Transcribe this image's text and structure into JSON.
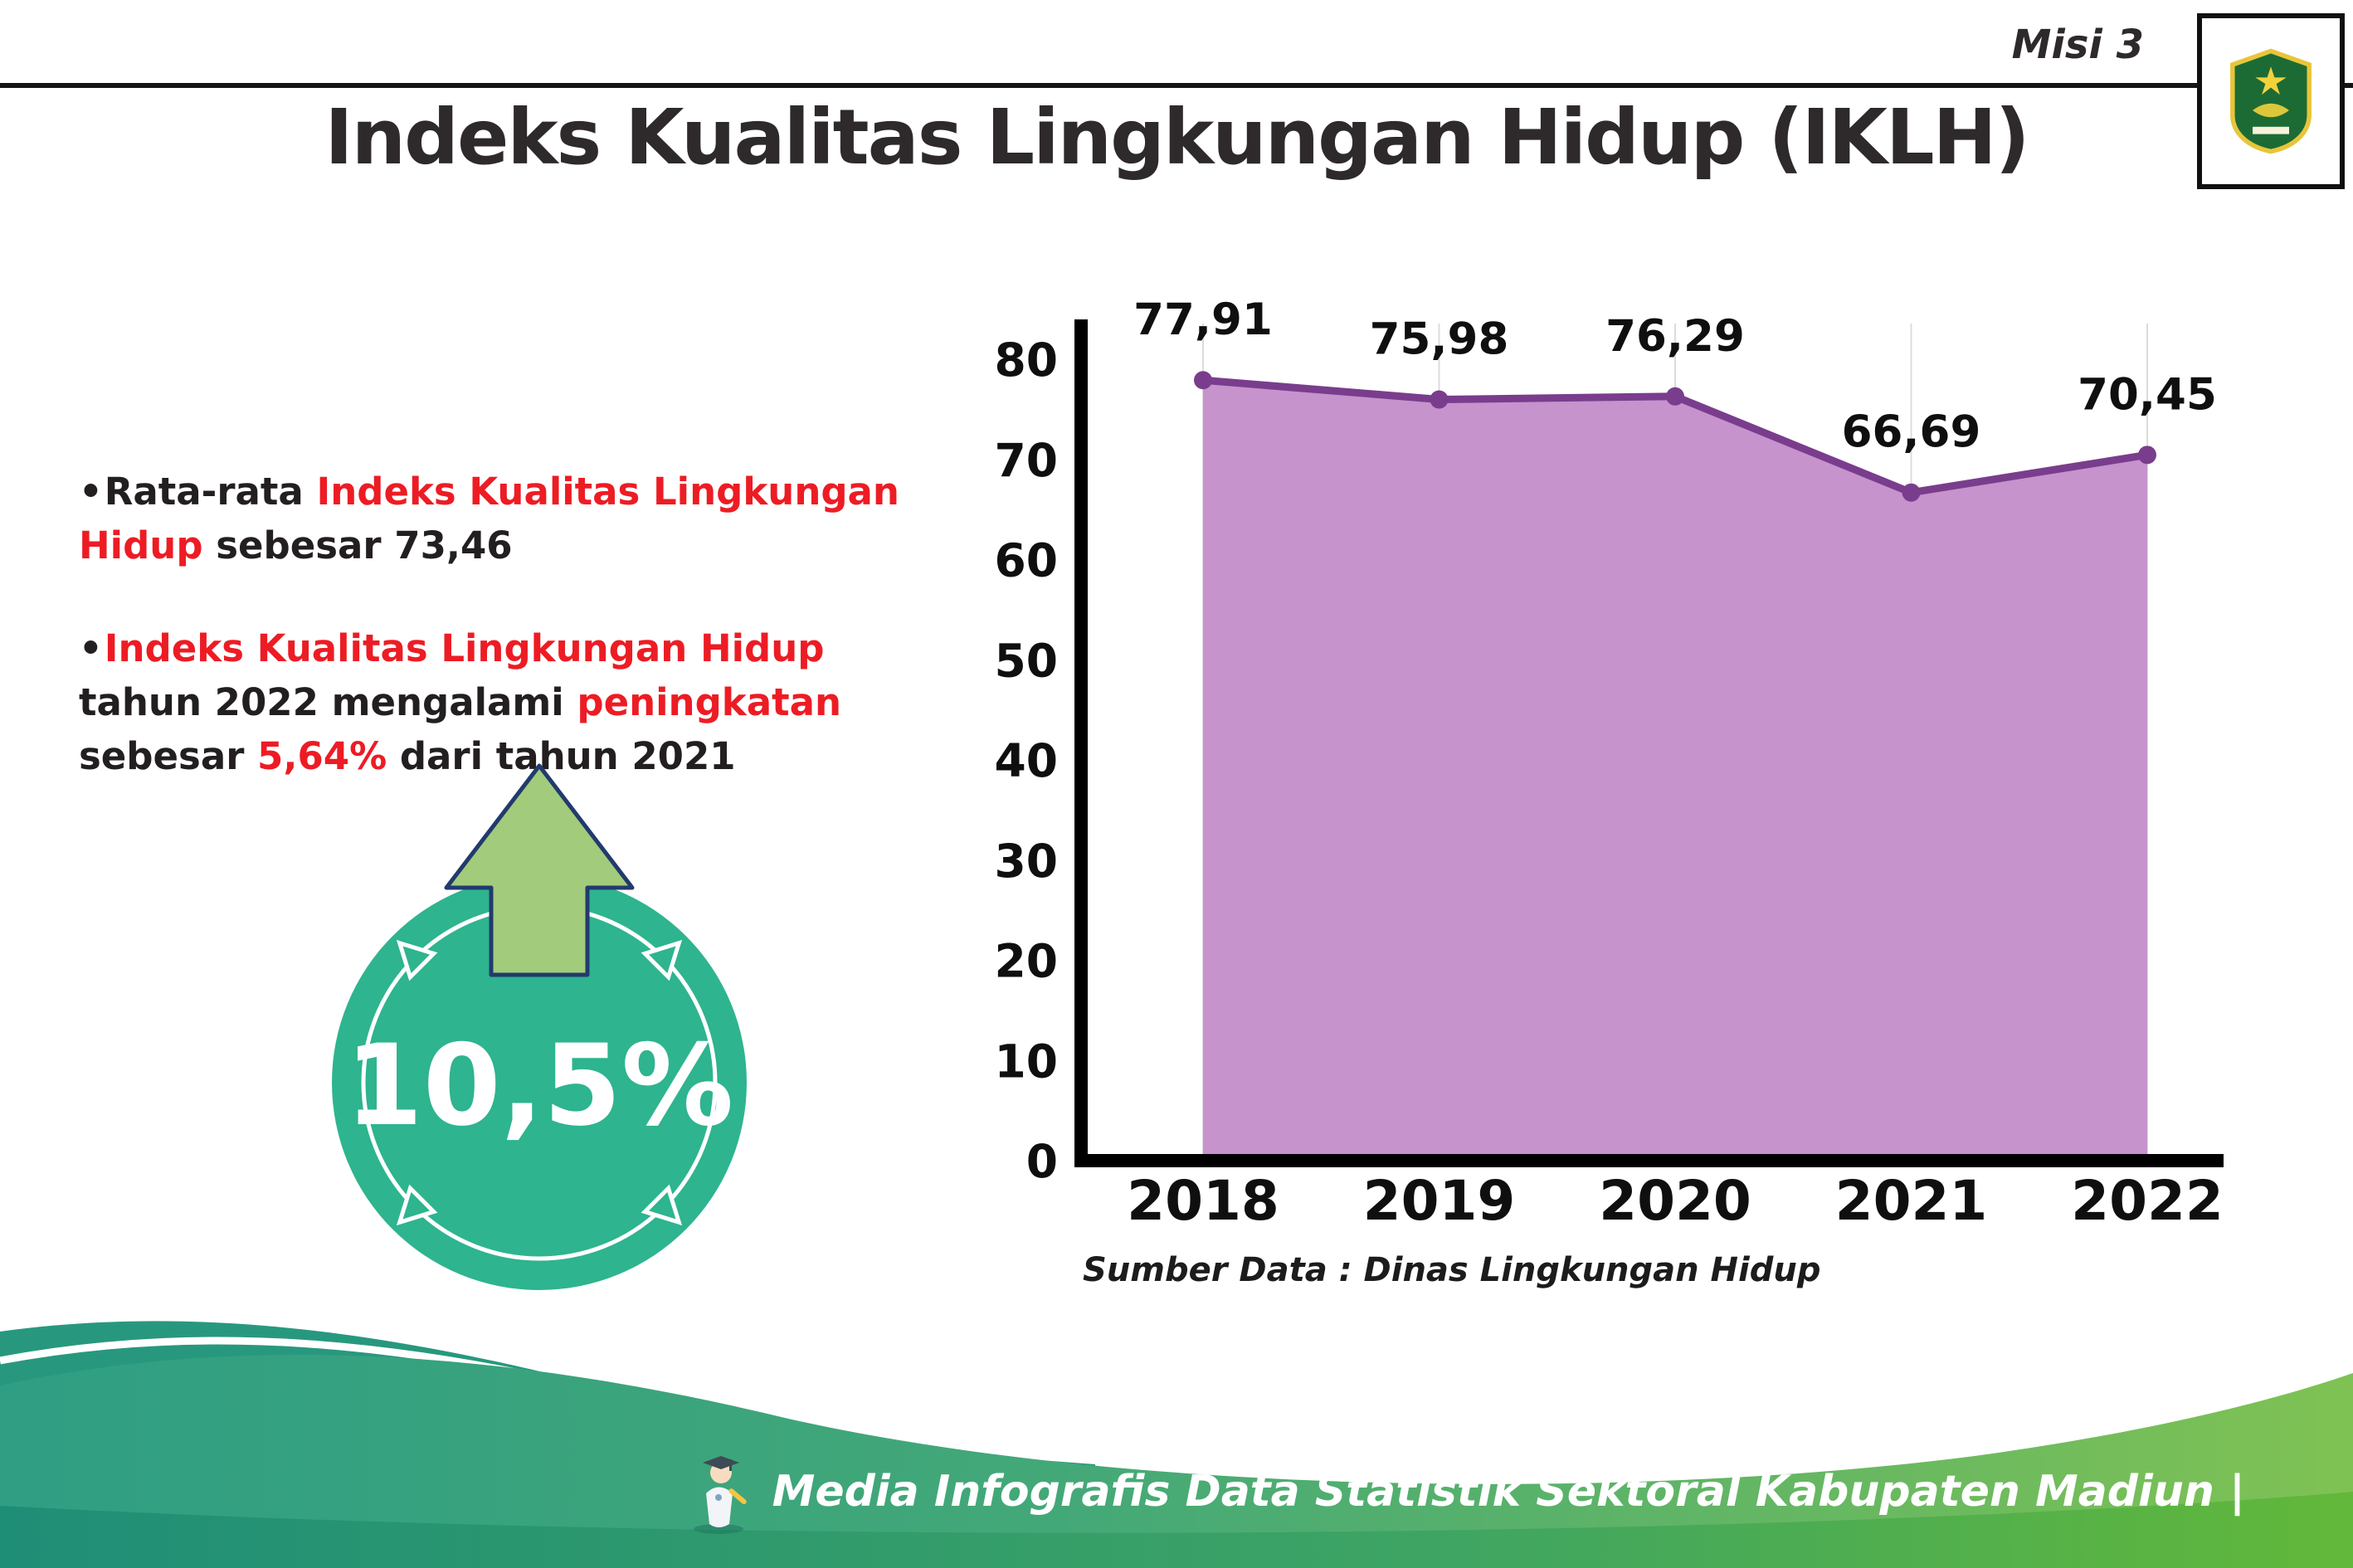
{
  "header": {
    "misi_label": "Misi 3",
    "logo_name": "Lambang Kabupaten Madiun",
    "title": "Indeks Kualitas Lingkungan Hidup (IKLH)"
  },
  "bullets": {
    "marker": "•",
    "b1": [
      {
        "text": "Rata-rata ",
        "color": "dark"
      },
      {
        "text": "Indeks Kualitas Lingkungan Hidup",
        "color": "red"
      },
      {
        "text": " sebesar 73,46",
        "color": "dark"
      }
    ],
    "b2": [
      {
        "text": "Indeks Kualitas Lingkungan Hidup",
        "color": "red"
      },
      {
        "text": " tahun 2022 mengalami ",
        "color": "dark"
      },
      {
        "text": "peningkatan",
        "color": "red"
      },
      {
        "text": " sebesar ",
        "color": "dark"
      },
      {
        "text": "5,64%",
        "color": "red"
      },
      {
        "text": " dari tahun 2021",
        "color": "dark"
      }
    ]
  },
  "badge": {
    "value": "10,5%"
  },
  "chart_data": {
    "type": "area",
    "title": "Indeks Kualitas Lingkungan Hidup (IKLH)",
    "categories": [
      "2018",
      "2019",
      "2020",
      "2021",
      "2022"
    ],
    "values": [
      77.91,
      75.98,
      76.29,
      66.69,
      70.45
    ],
    "point_labels": [
      "77,91",
      "75,98",
      "76,29",
      "66,69",
      "70,45"
    ],
    "xlabel": "",
    "ylabel": "",
    "ylim": [
      0,
      80
    ],
    "yticks": [
      0,
      10,
      20,
      30,
      40,
      50,
      60,
      70,
      80
    ],
    "grid": "vertical-light",
    "legend": "none",
    "line_color": "#7a3d8d",
    "fill_color": "#c693cd",
    "point_color": "#7a3d8d",
    "source": "Sumber Data : Dinas Lingkungan Hidup"
  },
  "footer": {
    "text": "Media Infografis Data Statistik Sektoral Kabupaten Madiun |"
  }
}
